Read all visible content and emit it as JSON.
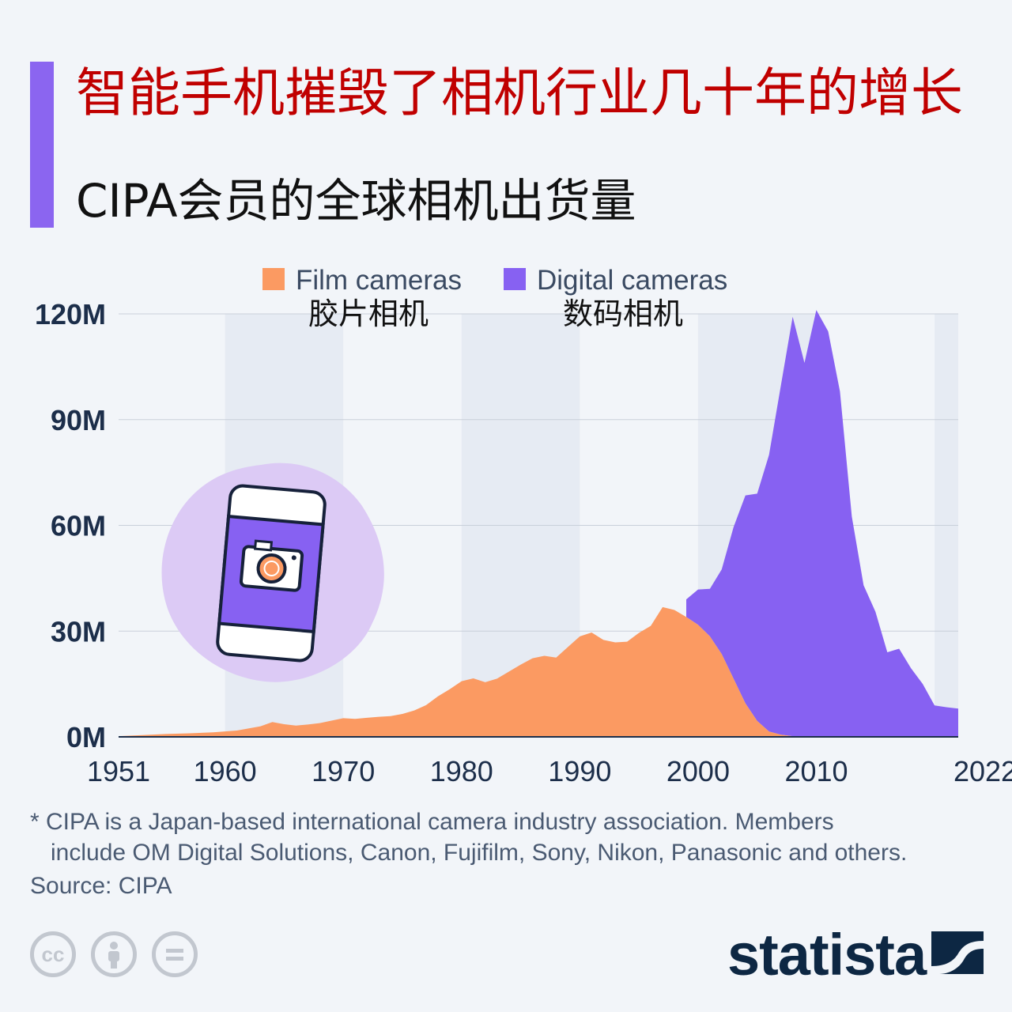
{
  "colors": {
    "accent_bar": "#8b65f0",
    "title": "#c00000",
    "film": "#fb9a62",
    "digital": "#8761f2",
    "band": "#e6ebf3",
    "grid": "#c9d0da",
    "axis_text": "#1c2e4a",
    "brand": "#0d2743",
    "illustration_bg": "#dccaf5"
  },
  "header": {
    "title": "智能手机摧毁了相机行业几十年的增长",
    "subtitle": "CIPA会员的全球相机出货量"
  },
  "chart_data": {
    "type": "area",
    "stacked": true,
    "x_tick_labels": [
      "1951",
      "1960",
      "1970",
      "1980",
      "1990",
      "2000",
      "2010",
      "2022"
    ],
    "y_tick_labels": [
      "0M",
      "30M",
      "60M",
      "90M",
      "120M"
    ],
    "ylim": [
      0,
      120
    ],
    "y_unit": "M",
    "xlim": [
      1951,
      2022
    ],
    "grid": "horizontal",
    "legend_position": "top",
    "shaded_decades": [
      [
        1960,
        1970
      ],
      [
        1980,
        1990
      ],
      [
        2000,
        2010
      ],
      [
        2020,
        2022
      ]
    ],
    "series": [
      {
        "name": "Film cameras",
        "name_zh": "胶片相机",
        "color": "#fb9a62",
        "points": [
          [
            1951,
            0.2
          ],
          [
            1953,
            0.5
          ],
          [
            1955,
            0.8
          ],
          [
            1957,
            1.0
          ],
          [
            1959,
            1.3
          ],
          [
            1961,
            1.8
          ],
          [
            1963,
            3.0
          ],
          [
            1964,
            4.2
          ],
          [
            1965,
            3.6
          ],
          [
            1966,
            3.2
          ],
          [
            1967,
            3.5
          ],
          [
            1968,
            3.9
          ],
          [
            1969,
            4.6
          ],
          [
            1970,
            5.3
          ],
          [
            1971,
            5.1
          ],
          [
            1972,
            5.4
          ],
          [
            1973,
            5.7
          ],
          [
            1974,
            5.9
          ],
          [
            1975,
            6.5
          ],
          [
            1976,
            7.5
          ],
          [
            1977,
            9.0
          ],
          [
            1978,
            11.5
          ],
          [
            1979,
            13.5
          ],
          [
            1980,
            15.8
          ],
          [
            1981,
            16.6
          ],
          [
            1982,
            15.5
          ],
          [
            1983,
            16.5
          ],
          [
            1984,
            18.5
          ],
          [
            1985,
            20.5
          ],
          [
            1986,
            22.3
          ],
          [
            1987,
            23.0
          ],
          [
            1988,
            22.5
          ],
          [
            1989,
            25.5
          ],
          [
            1990,
            28.5
          ],
          [
            1991,
            29.6
          ],
          [
            1992,
            27.5
          ],
          [
            1993,
            26.8
          ],
          [
            1994,
            27.0
          ],
          [
            1995,
            29.5
          ],
          [
            1996,
            31.5
          ],
          [
            1997,
            36.8
          ],
          [
            1998,
            36.0
          ],
          [
            1999,
            34.0
          ],
          [
            2000,
            31.8
          ],
          [
            2001,
            28.5
          ],
          [
            2002,
            23.5
          ],
          [
            2003,
            16.5
          ],
          [
            2004,
            9.5
          ],
          [
            2005,
            4.5
          ],
          [
            2006,
            1.5
          ],
          [
            2007,
            0.6
          ],
          [
            2008,
            0.2
          ],
          [
            2009,
            0.1
          ],
          [
            2010,
            0.1
          ],
          [
            2012,
            0.0
          ],
          [
            2022,
            0.0
          ]
        ]
      },
      {
        "name": "Digital cameras",
        "name_zh": "数码相机",
        "color": "#8761f2",
        "points": [
          [
            1999,
            5.0
          ],
          [
            2000,
            10.0
          ],
          [
            2001,
            13.5
          ],
          [
            2002,
            24.0
          ],
          [
            2003,
            43.0
          ],
          [
            2004,
            59.0
          ],
          [
            2005,
            64.5
          ],
          [
            2006,
            78.5
          ],
          [
            2007,
            99.0
          ],
          [
            2008,
            119.0
          ],
          [
            2009,
            106.0
          ],
          [
            2010,
            121.0
          ],
          [
            2011,
            115.0
          ],
          [
            2012,
            98.0
          ],
          [
            2013,
            62.5
          ],
          [
            2014,
            43.0
          ],
          [
            2015,
            35.5
          ],
          [
            2016,
            24.0
          ],
          [
            2017,
            25.0
          ],
          [
            2018,
            19.5
          ],
          [
            2019,
            15.0
          ],
          [
            2020,
            8.9
          ],
          [
            2021,
            8.4
          ],
          [
            2022,
            8.0
          ]
        ]
      }
    ]
  },
  "footnote": {
    "line1": "* CIPA is a Japan-based international camera industry association. Members",
    "line2": "include OM Digital Solutions, Canon, Fujifilm, Sony, Nikon, Panasonic and others."
  },
  "source": "Source: CIPA",
  "license_icons": [
    "cc-icon",
    "attribution-icon",
    "no-derivatives-icon"
  ],
  "brand": {
    "wordmark": "statista",
    "icon": "statista-logo-icon"
  },
  "illustration": {
    "icon": "smartphone-camera-icon"
  }
}
